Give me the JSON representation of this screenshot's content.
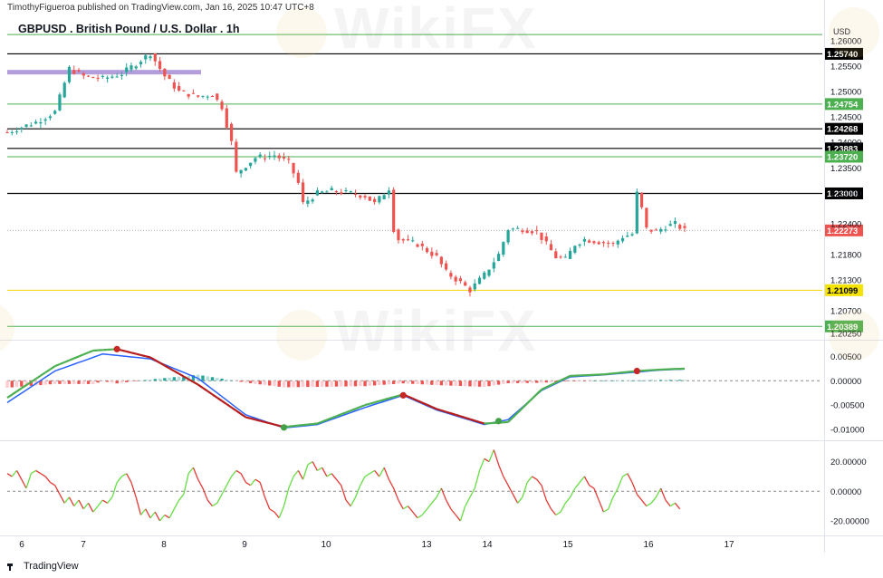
{
  "header": {
    "publisher": "TimothyFigueroa published on TradingView.com, Jan 16, 2025 10:47 UTC+8",
    "symbol_title": "GBPUSD . British Pound / U.S. Dollar . 1h",
    "currency": "USD"
  },
  "footer": {
    "brand": "TradingView"
  },
  "watermark": {
    "text": "WikiFX"
  },
  "colors": {
    "up": "#26a69a",
    "down": "#ef5350",
    "black_line": "#000000",
    "green_line": "#4caf50",
    "yellow_line": "#f5d700",
    "purple_zone": "#b39ddb",
    "macd": "#2962ff",
    "signal_green": "#4caf50",
    "signal_red": "#b71c1c",
    "osc_green": "#66dd44",
    "osc_red": "#e53935"
  },
  "chart_data": {
    "type": "candlestick",
    "x_tick_labels": [
      "6",
      "7",
      "8",
      "9",
      "10",
      "13",
      "14",
      "15",
      "16",
      "17"
    ],
    "y_tick_labels": [
      "1.26000",
      "1.25500",
      "1.25000",
      "1.24500",
      "1.24000",
      "1.23500",
      "1.23000",
      "1.22400",
      "1.21800",
      "1.21300",
      "1.20700",
      "1.20250"
    ],
    "ylim": [
      1.2018,
      1.2605
    ],
    "last_price": 1.22273,
    "levels": [
      {
        "label": "1.25740",
        "value": 1.2574,
        "style": "black"
      },
      {
        "label": "1.24754",
        "value": 1.24754,
        "style": "green"
      },
      {
        "label": "1.24268",
        "value": 1.24268,
        "style": "black"
      },
      {
        "label": "1.23883",
        "value": 1.23883,
        "style": "black"
      },
      {
        "label": "1.23720",
        "value": 1.2372,
        "style": "green"
      },
      {
        "label": "1.23000",
        "value": 1.23,
        "style": "black"
      },
      {
        "label": "1.21099",
        "value": 1.21099,
        "style": "yellow"
      },
      {
        "label": "1.20389",
        "value": 1.20389,
        "style": "green"
      },
      {
        "label": "",
        "value": 1.2612,
        "style": "green"
      }
    ],
    "zone": {
      "value": 1.2538
    },
    "close_path": [
      [
        0,
        1.242
      ],
      [
        6,
        1.244
      ],
      [
        10,
        1.246
      ],
      [
        13,
        1.2545
      ],
      [
        16,
        1.253
      ],
      [
        20,
        1.2525
      ],
      [
        24,
        1.2535
      ],
      [
        27,
        1.2555
      ],
      [
        30,
        1.2575
      ],
      [
        33,
        1.253
      ],
      [
        36,
        1.25
      ],
      [
        40,
        1.249
      ],
      [
        43,
        1.2495
      ],
      [
        45,
        1.247
      ],
      [
        47,
        1.24
      ],
      [
        48,
        1.234
      ],
      [
        52,
        1.237
      ],
      [
        56,
        1.2375
      ],
      [
        59,
        1.236
      ],
      [
        61,
        1.232
      ],
      [
        62,
        1.228
      ],
      [
        65,
        1.23
      ],
      [
        68,
        1.2305
      ],
      [
        72,
        1.23
      ],
      [
        75,
        1.2295
      ],
      [
        77,
        1.228
      ],
      [
        79,
        1.23
      ],
      [
        80,
        1.231
      ],
      [
        81,
        1.223
      ],
      [
        82,
        1.221
      ],
      [
        86,
        1.22
      ],
      [
        90,
        1.2175
      ],
      [
        92,
        1.2145
      ],
      [
        95,
        1.2125
      ],
      [
        97,
        1.211
      ],
      [
        100,
        1.214
      ],
      [
        103,
        1.218
      ],
      [
        105,
        1.223
      ],
      [
        108,
        1.223
      ],
      [
        111,
        1.2225
      ],
      [
        113,
        1.22
      ],
      [
        115,
        1.2175
      ],
      [
        117,
        1.217
      ],
      [
        119,
        1.22
      ],
      [
        121,
        1.221
      ],
      [
        124,
        1.2205
      ],
      [
        127,
        1.22
      ],
      [
        129,
        1.2215
      ],
      [
        131,
        1.222
      ],
      [
        132,
        1.23
      ],
      [
        133,
        1.227
      ],
      [
        134,
        1.223
      ],
      [
        136,
        1.2225
      ],
      [
        138,
        1.2235
      ],
      [
        140,
        1.224
      ],
      [
        142,
        1.2227
      ]
    ],
    "macd": {
      "y_tick_labels": [
        "0.00500",
        "0.00000",
        "-0.00500",
        "-0.01000"
      ],
      "ylim": [
        -0.0115,
        0.0075
      ],
      "macd_line": [
        [
          0,
          -0.0045
        ],
        [
          10,
          0.002
        ],
        [
          20,
          0.0055
        ],
        [
          30,
          0.0045
        ],
        [
          40,
          0.0005
        ],
        [
          50,
          -0.007
        ],
        [
          58,
          -0.0097
        ],
        [
          65,
          -0.009
        ],
        [
          75,
          -0.0055
        ],
        [
          83,
          -0.003
        ],
        [
          90,
          -0.006
        ],
        [
          100,
          -0.009
        ],
        [
          105,
          -0.008
        ],
        [
          112,
          -0.002
        ],
        [
          118,
          0.0008
        ],
        [
          125,
          0.0012
        ],
        [
          132,
          0.0018
        ],
        [
          137,
          0.0022
        ],
        [
          142,
          0.0024
        ]
      ],
      "signal_line": [
        [
          0,
          -0.0035
        ],
        [
          10,
          0.003
        ],
        [
          18,
          0.0062
        ],
        [
          23,
          0.0065
        ],
        [
          30,
          0.0048
        ],
        [
          40,
          -0.0008
        ],
        [
          50,
          -0.0075
        ],
        [
          58,
          -0.0095
        ],
        [
          65,
          -0.0088
        ],
        [
          75,
          -0.005
        ],
        [
          83,
          -0.0028
        ],
        [
          90,
          -0.0058
        ],
        [
          100,
          -0.0088
        ],
        [
          105,
          -0.0085
        ],
        [
          112,
          -0.0018
        ],
        [
          118,
          0.001
        ],
        [
          125,
          0.0013
        ],
        [
          132,
          0.002
        ],
        [
          137,
          0.0023
        ],
        [
          142,
          0.0025
        ]
      ],
      "cross_points": [
        [
          23,
          0.0065,
          "red"
        ],
        [
          58,
          -0.0096,
          "green"
        ],
        [
          83,
          -0.003,
          "red"
        ],
        [
          103,
          -0.0083,
          "green"
        ],
        [
          132,
          0.002,
          "red"
        ]
      ]
    },
    "oscillator": {
      "y_tick_labels": [
        "20.00000",
        "0.00000",
        "-20.00000"
      ],
      "ylim": [
        -28,
        32
      ],
      "values": [
        12,
        10,
        14,
        8,
        2,
        12,
        14,
        12,
        10,
        6,
        4,
        -2,
        -8,
        -4,
        -10,
        -6,
        -12,
        -8,
        -14,
        -10,
        -6,
        -8,
        -4,
        6,
        10,
        12,
        6,
        -4,
        -16,
        -12,
        -18,
        -14,
        -20,
        -16,
        -18,
        -12,
        -6,
        -2,
        12,
        16,
        8,
        2,
        -6,
        -10,
        -8,
        -2,
        4,
        10,
        14,
        12,
        6,
        4,
        8,
        6,
        -4,
        -12,
        -14,
        -18,
        -10,
        2,
        10,
        14,
        8,
        18,
        20,
        14,
        16,
        10,
        12,
        8,
        4,
        -6,
        -10,
        -4,
        4,
        10,
        12,
        14,
        10,
        16,
        8,
        2,
        -6,
        -12,
        -10,
        -14,
        -18,
        -16,
        -12,
        -8,
        -4,
        2,
        -6,
        -12,
        -16,
        -20,
        -10,
        -4,
        2,
        14,
        22,
        20,
        28,
        18,
        10,
        4,
        -2,
        -8,
        -4,
        6,
        10,
        8,
        4,
        -6,
        -12,
        -16,
        -14,
        -8,
        -4,
        2,
        6,
        10,
        4,
        2,
        -6,
        -14,
        -12,
        -4,
        2,
        10,
        12,
        6,
        -2,
        -6,
        -10,
        -8,
        -4,
        2,
        -6,
        -10,
        -8,
        -12
      ]
    }
  }
}
